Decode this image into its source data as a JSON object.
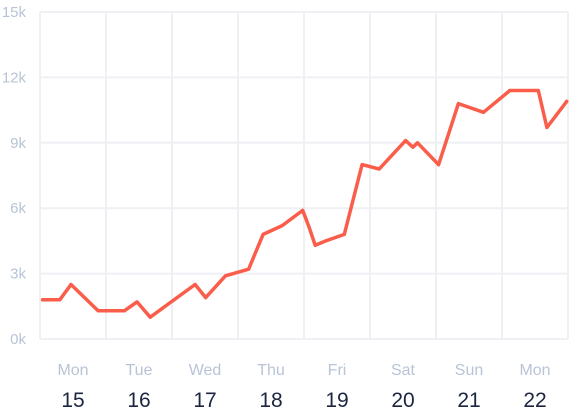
{
  "chart_data": {
    "type": "line",
    "title": "",
    "xlabel": "",
    "ylabel": "",
    "ylim": [
      0,
      15000
    ],
    "yticks": [
      {
        "value": 0,
        "label": "0k"
      },
      {
        "value": 3000,
        "label": "3k"
      },
      {
        "value": 6000,
        "label": "6k"
      },
      {
        "value": 9000,
        "label": "9k"
      },
      {
        "value": 12000,
        "label": "12k"
      },
      {
        "value": 15000,
        "label": "15k"
      }
    ],
    "xlim": [
      0,
      8
    ],
    "xticks": [
      {
        "value": 0.5,
        "day": "Mon",
        "date": "15"
      },
      {
        "value": 1.5,
        "day": "Tue",
        "date": "16"
      },
      {
        "value": 2.5,
        "day": "Wed",
        "date": "17"
      },
      {
        "value": 3.5,
        "day": "Thu",
        "date": "18"
      },
      {
        "value": 4.5,
        "day": "Fri",
        "date": "19"
      },
      {
        "value": 5.5,
        "day": "Sat",
        "date": "20"
      },
      {
        "value": 6.5,
        "day": "Sun",
        "date": "21"
      },
      {
        "value": 7.5,
        "day": "Mon",
        "date": "22"
      }
    ],
    "grid": true,
    "color": "#fa5e4b",
    "series": [
      {
        "x": [
          0.04,
          0.3,
          0.47,
          0.88,
          1.28,
          1.47,
          1.67,
          2.35,
          2.51,
          2.81,
          3.16,
          3.38,
          3.67,
          3.98,
          4.08,
          4.17,
          4.33,
          4.61,
          4.88,
          5.14,
          5.54,
          5.65,
          5.72,
          6.04,
          6.34,
          6.72,
          7.12,
          7.55,
          7.68,
          7.98
        ],
        "y": [
          1800,
          1800,
          2500,
          1300,
          1300,
          1700,
          1000,
          2500,
          1900,
          2900,
          3200,
          4800,
          5200,
          5900,
          5100,
          4300,
          4500,
          4800,
          8000,
          7800,
          9100,
          8800,
          9000,
          8000,
          10800,
          10400,
          11400,
          11400,
          9700,
          10900
        ]
      }
    ]
  }
}
